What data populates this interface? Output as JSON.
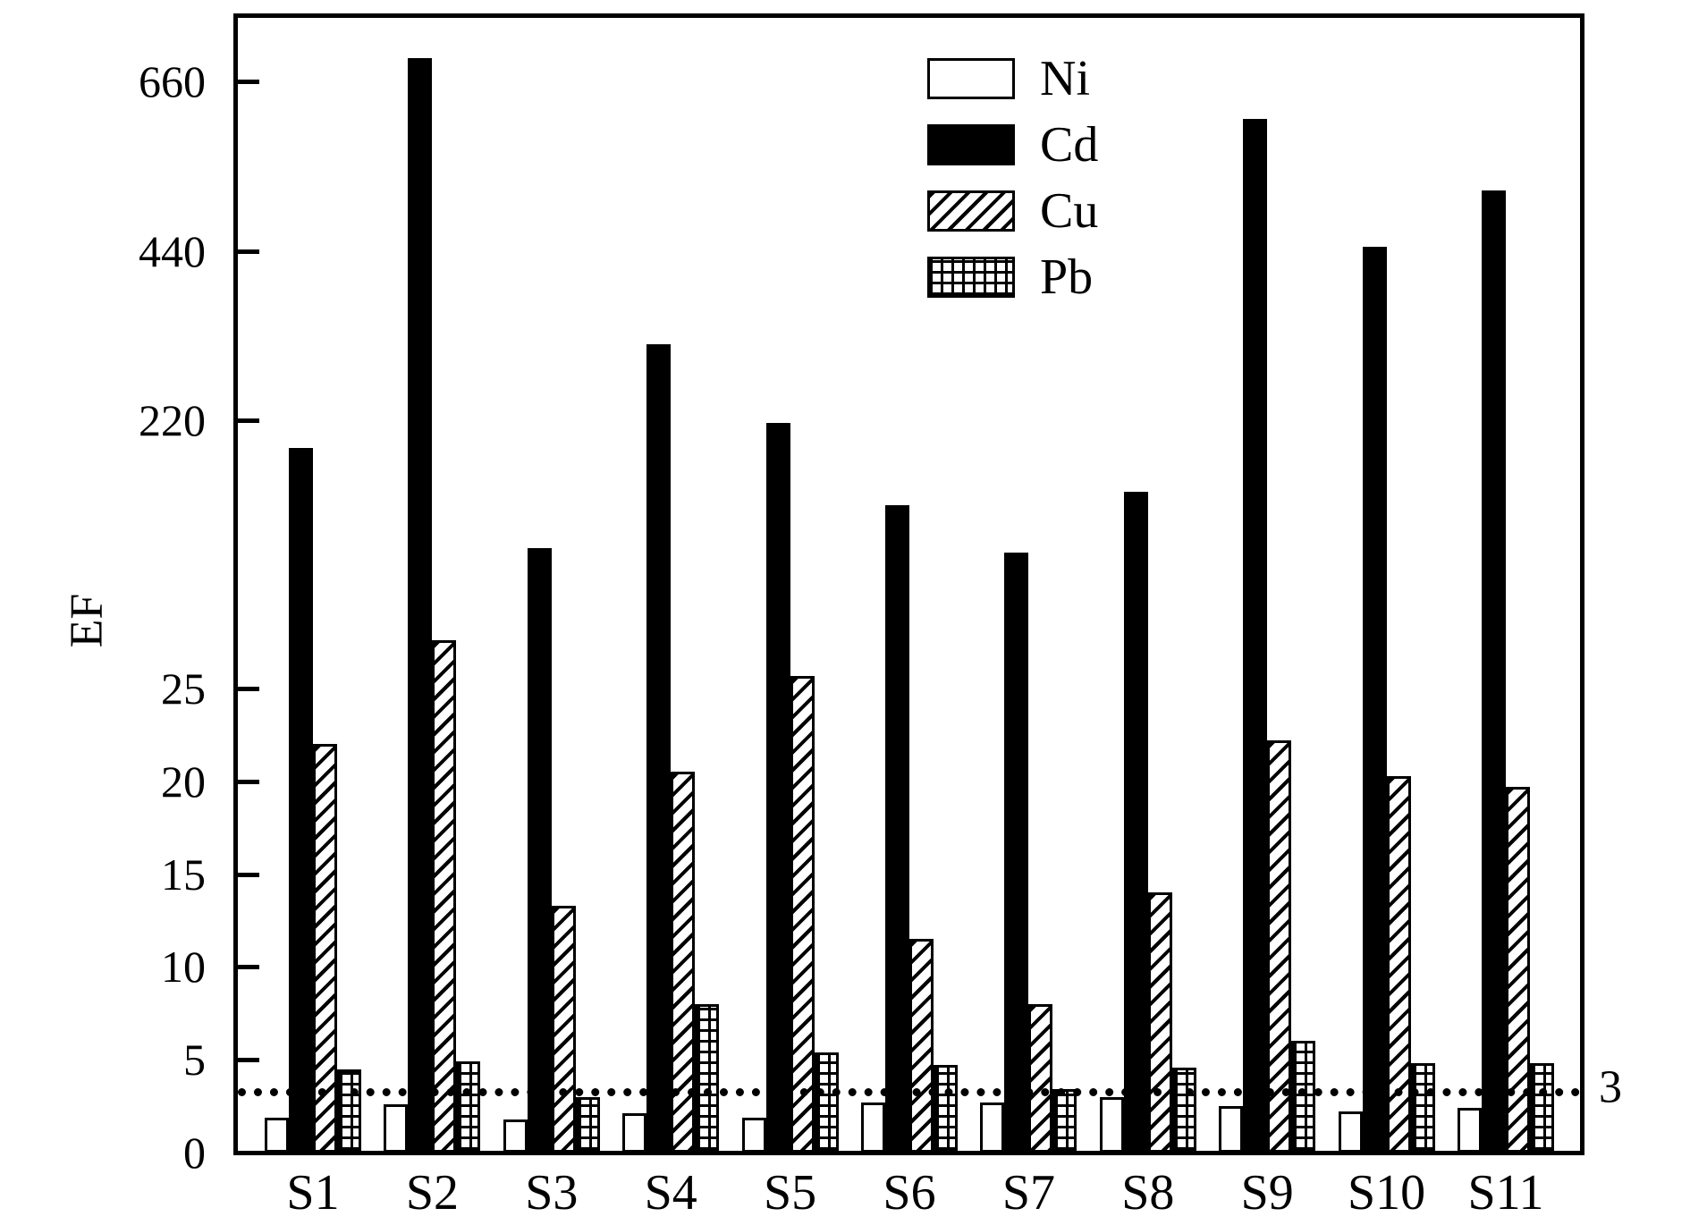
{
  "figure": {
    "kind": "scientific bar chart",
    "background": "#ffffff",
    "ink_color": "#000000"
  },
  "y_axis": {
    "label": "EF",
    "tick_labels": [
      "660",
      "440",
      "220",
      "25",
      "20",
      "15",
      "10",
      "5",
      "0"
    ]
  },
  "x_axis": {
    "categories": [
      "S1",
      "S2",
      "S3",
      "S4",
      "S5",
      "S6",
      "S7",
      "S8",
      "S9",
      "S10",
      "S11"
    ]
  },
  "legend": {
    "entries": [
      {
        "label": "Ni",
        "pattern": "plain-white"
      },
      {
        "label": "Cd",
        "pattern": "solid-black"
      },
      {
        "label": "Cu",
        "pattern": "diagonal-hatch"
      },
      {
        "label": "Pb",
        "pattern": "grid-hatch"
      }
    ]
  },
  "reference_line": {
    "value": 3,
    "label": "3",
    "style": "dotted"
  },
  "chart_data": {
    "type": "bar",
    "title": "",
    "xlabel": "",
    "ylabel": "EF",
    "categories": [
      "S1",
      "S2",
      "S3",
      "S4",
      "S5",
      "S6",
      "S7",
      "S8",
      "S9",
      "S10",
      "S11"
    ],
    "series": [
      {
        "name": "Ni",
        "pattern": "plain-white",
        "values": [
          1.9,
          2.6,
          1.8,
          2.1,
          1.9,
          2.7,
          2.7,
          3.0,
          2.5,
          2.2,
          2.4
        ]
      },
      {
        "name": "Cd",
        "pattern": "solid-black",
        "values": [
          200,
          690,
          127,
          319,
          218,
          158,
          124,
          168,
          611,
          445,
          518
        ]
      },
      {
        "name": "Cu",
        "pattern": "diagonal-hatch",
        "values": [
          22,
          60,
          13.3,
          20.5,
          34,
          11.5,
          8,
          14,
          22.2,
          20.3,
          19.7
        ]
      },
      {
        "name": "Pb",
        "pattern": "grid-hatch",
        "values": [
          4.5,
          4.9,
          3.0,
          8.0,
          5.4,
          4.7,
          3.4,
          4.6,
          6.0,
          4.8,
          4.8
        ]
      }
    ],
    "y_axis": {
      "type": "segmented-broken-axis",
      "segments": [
        {
          "value_range": [
            0,
            25
          ],
          "ticks": [
            0,
            5,
            10,
            15,
            20,
            25
          ]
        },
        {
          "value_range": [
            25,
            220
          ],
          "ticks": [
            220
          ],
          "note": "compressed segment"
        },
        {
          "value_range": [
            220,
            690
          ],
          "ticks": [
            220,
            440,
            660
          ]
        }
      ],
      "ticks": [
        0,
        5,
        10,
        15,
        20,
        25,
        220,
        440,
        660
      ]
    },
    "reference_line": {
      "value": 3,
      "label": "3"
    },
    "legend_position": "top-right-inside",
    "grid": false
  }
}
